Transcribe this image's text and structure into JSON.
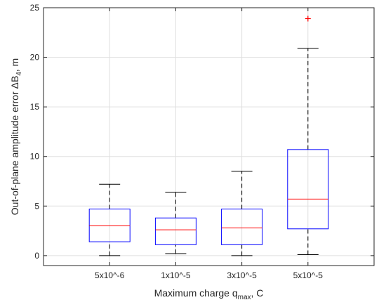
{
  "chart_data": {
    "type": "boxplot",
    "xlabel": {
      "main": "Maximum charge q",
      "sub": "max",
      "tail": ", C"
    },
    "ylabel": {
      "main": "Out-of-plane amplitude error ΔB",
      "sub": "4",
      "tail": ", m"
    },
    "ylim": [
      -1,
      25
    ],
    "yticks": [
      "0",
      "5",
      "10",
      "15",
      "20",
      "25"
    ],
    "grid": true,
    "categories": [
      "5x10^-6",
      "1x10^-5",
      "3x10^-5",
      "5x10^-5"
    ],
    "boxes": [
      {
        "whisker_low": 0.0,
        "q1": 1.4,
        "median": 3.0,
        "q3": 4.7,
        "whisker_high": 7.2,
        "outliers": []
      },
      {
        "whisker_low": 0.2,
        "q1": 1.1,
        "median": 2.6,
        "q3": 3.8,
        "whisker_high": 6.4,
        "outliers": []
      },
      {
        "whisker_low": 0.0,
        "q1": 1.1,
        "median": 2.8,
        "q3": 4.7,
        "whisker_high": 8.5,
        "outliers": []
      },
      {
        "whisker_low": 0.1,
        "q1": 2.7,
        "median": 5.7,
        "q3": 10.7,
        "whisker_high": 20.9,
        "outliers": [
          23.9
        ]
      }
    ],
    "colors": {
      "box": "#0000ff",
      "median": "#ff0000",
      "whisker": "#000000",
      "outlier": "#ff0000",
      "grid": "#dfdfdf",
      "axis": "#262626"
    }
  }
}
